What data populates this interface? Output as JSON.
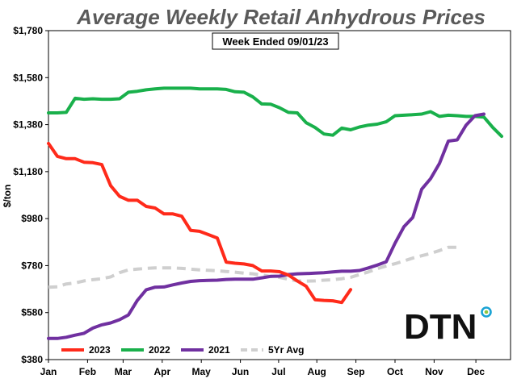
{
  "chart_data": {
    "type": "line",
    "title": "Average Weekly Retail Anhydrous Prices",
    "annotation": "Week Ended 09/01/23",
    "ylabel": "$/ton",
    "ylim": [
      380,
      1780
    ],
    "yticks": [
      "$1,780",
      "$1,580",
      "$1,380",
      "$1,180",
      "$980",
      "$780",
      "$580",
      "$380"
    ],
    "ytick_values": [
      1780,
      1580,
      1380,
      1180,
      980,
      780,
      580,
      380
    ],
    "xlim": [
      1,
      53
    ],
    "xticks": [
      "Jan",
      "Feb",
      "Mar",
      "Apr",
      "May",
      "Jun",
      "Jul",
      "Aug",
      "Sep",
      "Oct",
      "Nov",
      "Dec"
    ],
    "xtick_weeks": [
      1,
      5.4,
      9.4,
      13.8,
      18.2,
      22.6,
      26.9,
      31.2,
      35.6,
      40,
      44.4,
      49.1
    ],
    "grid": false,
    "legend_position": "bottom-left",
    "logo_text": "DTN",
    "series": [
      {
        "name": "2023",
        "color": "#ff2a1a",
        "style": "solid",
        "values": [
          [
            1,
            1300
          ],
          [
            2,
            1245
          ],
          [
            3,
            1235
          ],
          [
            4,
            1235
          ],
          [
            5,
            1220
          ],
          [
            6,
            1218
          ],
          [
            7,
            1210
          ],
          [
            8,
            1120
          ],
          [
            9,
            1075
          ],
          [
            10,
            1058
          ],
          [
            11,
            1058
          ],
          [
            12,
            1032
          ],
          [
            13,
            1025
          ],
          [
            14,
            1000
          ],
          [
            15,
            1000
          ],
          [
            16,
            990
          ],
          [
            17,
            930
          ],
          [
            18,
            926
          ],
          [
            19,
            912
          ],
          [
            20,
            897
          ],
          [
            21,
            795
          ],
          [
            22,
            790
          ],
          [
            23,
            787
          ],
          [
            24,
            780
          ],
          [
            25,
            757
          ],
          [
            26,
            757
          ],
          [
            27,
            754
          ],
          [
            28,
            740
          ],
          [
            29,
            715
          ],
          [
            30,
            692
          ],
          [
            31,
            635
          ],
          [
            32,
            632
          ],
          [
            33,
            630
          ],
          [
            34,
            623
          ],
          [
            35,
            678
          ]
        ]
      },
      {
        "name": "2022",
        "color": "#19b04b",
        "style": "solid",
        "values": [
          [
            1,
            1430
          ],
          [
            2,
            1430
          ],
          [
            3,
            1432
          ],
          [
            4,
            1492
          ],
          [
            5,
            1488
          ],
          [
            6,
            1490
          ],
          [
            7,
            1488
          ],
          [
            8,
            1488
          ],
          [
            9,
            1490
          ],
          [
            10,
            1518
          ],
          [
            11,
            1522
          ],
          [
            12,
            1528
          ],
          [
            13,
            1532
          ],
          [
            14,
            1535
          ],
          [
            15,
            1535
          ],
          [
            16,
            1535
          ],
          [
            17,
            1535
          ],
          [
            18,
            1532
          ],
          [
            19,
            1532
          ],
          [
            20,
            1532
          ],
          [
            21,
            1530
          ],
          [
            22,
            1520
          ],
          [
            23,
            1518
          ],
          [
            24,
            1498
          ],
          [
            25,
            1468
          ],
          [
            26,
            1467
          ],
          [
            27,
            1452
          ],
          [
            28,
            1432
          ],
          [
            29,
            1430
          ],
          [
            30,
            1388
          ],
          [
            31,
            1368
          ],
          [
            32,
            1340
          ],
          [
            33,
            1335
          ],
          [
            34,
            1365
          ],
          [
            35,
            1358
          ],
          [
            36,
            1370
          ],
          [
            37,
            1378
          ],
          [
            38,
            1382
          ],
          [
            39,
            1392
          ],
          [
            40,
            1418
          ],
          [
            41,
            1420
          ],
          [
            42,
            1422
          ],
          [
            43,
            1425
          ],
          [
            44,
            1435
          ],
          [
            45,
            1415
          ],
          [
            46,
            1420
          ],
          [
            47,
            1418
          ],
          [
            48,
            1415
          ],
          [
            49,
            1415
          ],
          [
            50,
            1412
          ],
          [
            51,
            1368
          ],
          [
            52,
            1330
          ]
        ]
      },
      {
        "name": "2021",
        "color": "#7030a0",
        "style": "solid",
        "values": [
          [
            1,
            470
          ],
          [
            2,
            470
          ],
          [
            3,
            475
          ],
          [
            4,
            484
          ],
          [
            5,
            492
          ],
          [
            6,
            514
          ],
          [
            7,
            528
          ],
          [
            8,
            536
          ],
          [
            9,
            550
          ],
          [
            10,
            570
          ],
          [
            11,
            632
          ],
          [
            12,
            677
          ],
          [
            13,
            688
          ],
          [
            14,
            689
          ],
          [
            15,
            698
          ],
          [
            16,
            706
          ],
          [
            17,
            713
          ],
          [
            18,
            716
          ],
          [
            19,
            717
          ],
          [
            20,
            718
          ],
          [
            21,
            721
          ],
          [
            22,
            722
          ],
          [
            23,
            722
          ],
          [
            24,
            722
          ],
          [
            25,
            728
          ],
          [
            26,
            734
          ],
          [
            27,
            735
          ],
          [
            28,
            742
          ],
          [
            29,
            745
          ],
          [
            30,
            746
          ],
          [
            31,
            748
          ],
          [
            32,
            750
          ],
          [
            33,
            753
          ],
          [
            34,
            756
          ],
          [
            35,
            756
          ],
          [
            36,
            759
          ],
          [
            37,
            770
          ],
          [
            38,
            782
          ],
          [
            39,
            796
          ],
          [
            40,
            875
          ],
          [
            41,
            945
          ],
          [
            42,
            985
          ],
          [
            43,
            1105
          ],
          [
            44,
            1150
          ],
          [
            45,
            1215
          ],
          [
            46,
            1310
          ],
          [
            47,
            1315
          ],
          [
            48,
            1378
          ],
          [
            49,
            1418
          ],
          [
            50,
            1425
          ]
        ]
      },
      {
        "name": "5Yr Avg",
        "color": "#cfcfcf",
        "style": "dashed",
        "values": [
          [
            1,
            688
          ],
          [
            2,
            690
          ],
          [
            3,
            702
          ],
          [
            4,
            706
          ],
          [
            5,
            715
          ],
          [
            6,
            720
          ],
          [
            7,
            724
          ],
          [
            8,
            732
          ],
          [
            9,
            750
          ],
          [
            10,
            762
          ],
          [
            11,
            765
          ],
          [
            12,
            768
          ],
          [
            13,
            770
          ],
          [
            14,
            770
          ],
          [
            15,
            770
          ],
          [
            16,
            768
          ],
          [
            17,
            765
          ],
          [
            18,
            762
          ],
          [
            19,
            760
          ],
          [
            20,
            758
          ],
          [
            21,
            755
          ],
          [
            22,
            752
          ],
          [
            23,
            748
          ],
          [
            24,
            745
          ],
          [
            25,
            740
          ],
          [
            26,
            734
          ],
          [
            27,
            730
          ],
          [
            28,
            722
          ],
          [
            29,
            715
          ],
          [
            30,
            714
          ],
          [
            31,
            715
          ],
          [
            32,
            718
          ],
          [
            33,
            720
          ],
          [
            34,
            724
          ],
          [
            35,
            730
          ],
          [
            36,
            742
          ],
          [
            37,
            753
          ],
          [
            38,
            767
          ],
          [
            39,
            778
          ],
          [
            40,
            788
          ],
          [
            41,
            800
          ],
          [
            42,
            812
          ],
          [
            43,
            822
          ],
          [
            44,
            832
          ],
          [
            45,
            844
          ],
          [
            46,
            858
          ],
          [
            47,
            858
          ]
        ]
      }
    ]
  }
}
